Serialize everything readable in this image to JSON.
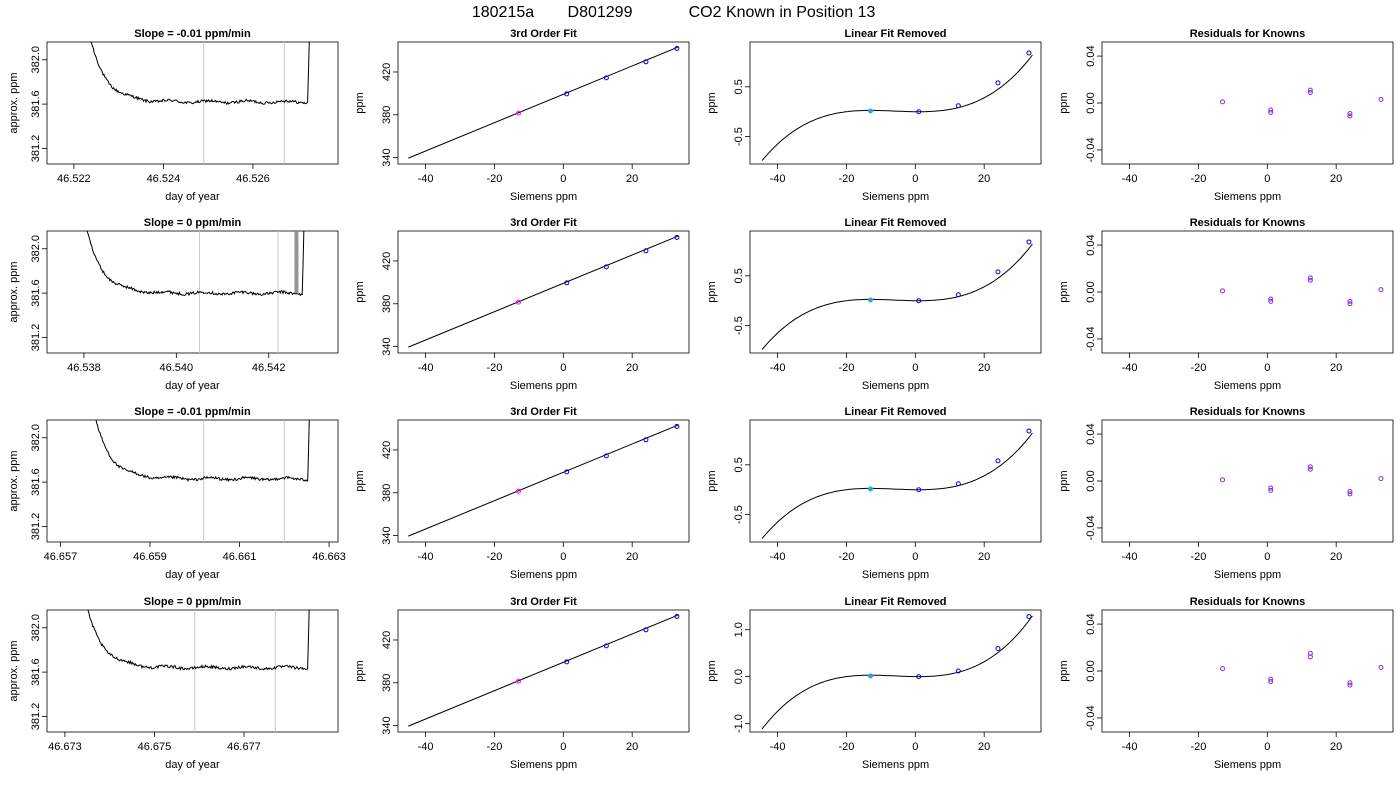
{
  "figure": {
    "title_parts": [
      "180215a",
      "D801299",
      "CO2 Known in Position  13"
    ]
  },
  "colors": {
    "trace": "#000000",
    "flag_line": "#c8c8c8",
    "known_point": "#0000ff",
    "ref_point": "#ff00ff",
    "position_point": "#29a3e6",
    "residual_point": "#8a2be2"
  },
  "chart_data": [
    {
      "type": "line",
      "panel": "timeseries",
      "row": 0,
      "title": "Slope =  -0.01  ppm/min",
      "xlabel": "day of year",
      "ylabel": "approx. ppm",
      "xlim": [
        46.5214,
        46.5279
      ],
      "ylim": [
        381.06,
        382.16
      ],
      "xticks": [
        46.522,
        46.524,
        46.526
      ],
      "xtick_labels": [
        "46.522",
        "46.524",
        "46.526"
      ],
      "yticks": [
        381.2,
        381.6,
        382.0
      ],
      "ytick_labels": [
        "381.2",
        "381.6",
        "382.0"
      ],
      "flag_x": [
        46.5249,
        46.5267
      ],
      "start_x": 46.5222,
      "end_x": 46.5273,
      "plateau": 381.62,
      "spike_x": 46.52695
    },
    {
      "type": "scatter",
      "panel": "fit",
      "row": 0,
      "title": "3rd Order Fit",
      "xlabel": "Siemens ppm",
      "ylabel": "ppm",
      "xlim": [
        -48,
        36.5
      ],
      "ylim": [
        334,
        448
      ],
      "xticks": [
        -40,
        -20,
        0,
        20
      ],
      "xtick_labels": [
        "-40",
        "-20",
        "0",
        "20"
      ],
      "yticks": [
        340,
        380,
        420
      ],
      "ytick_labels": [
        "340",
        "380",
        "420"
      ],
      "curve": {
        "x": [
          -45,
          33.5
        ],
        "y": [
          339.5,
          443.5
        ]
      },
      "points": [
        {
          "x": -13,
          "y": 381.5
        },
        {
          "x": 1,
          "y": 399.5
        },
        {
          "x": 12.5,
          "y": 414.5
        },
        {
          "x": 24,
          "y": 429.5
        },
        {
          "x": 33,
          "y": 442
        }
      ]
    },
    {
      "type": "scatter",
      "panel": "linear_removed",
      "row": 0,
      "title": "Linear Fit Removed",
      "xlabel": "Siemens ppm",
      "ylabel": "ppm",
      "xlim": [
        -48,
        36.5
      ],
      "ylim": [
        -1.05,
        1.4
      ],
      "xticks": [
        -40,
        -20,
        0,
        20
      ],
      "xtick_labels": [
        "-40",
        "-20",
        "0",
        "20"
      ],
      "yticks": [
        -0.5,
        0.5
      ],
      "ytick_labels": [
        "-0.5",
        "0.5"
      ],
      "curve": {
        "x": [
          -44.5,
          34
        ],
        "y0": 0,
        "xmin": -13,
        "xmax": 1,
        "a": 5.8e-05
      },
      "points": [
        {
          "x": -13,
          "y": 0.015
        },
        {
          "x": 1,
          "y": 0
        },
        {
          "x": 12.5,
          "y": 0.12
        },
        {
          "x": 24,
          "y": 0.58
        },
        {
          "x": 33,
          "y": 1.18
        }
      ]
    },
    {
      "type": "scatter",
      "panel": "residuals",
      "row": 0,
      "title": "Residuals for Knowns",
      "xlabel": "Siemens ppm",
      "ylabel": "ppm",
      "xlim": [
        -48,
        36.5
      ],
      "ylim": [
        -0.052,
        0.052
      ],
      "xticks": [
        -40,
        -20,
        0,
        20
      ],
      "xtick_labels": [
        "-40",
        "-20",
        "0",
        "20"
      ],
      "yticks": [
        -0.04,
        0.0,
        0.04
      ],
      "ytick_labels": [
        "-0.04",
        "0.00",
        "0.04"
      ],
      "points": [
        {
          "x": -13,
          "y": 0.001
        },
        {
          "x": 1,
          "y": -0.006
        },
        {
          "x": 1,
          "y": -0.008
        },
        {
          "x": 12.5,
          "y": 0.011
        },
        {
          "x": 12.5,
          "y": 0.009
        },
        {
          "x": 24,
          "y": -0.009
        },
        {
          "x": 24,
          "y": -0.011
        },
        {
          "x": 33,
          "y": 0.003
        }
      ]
    },
    {
      "type": "line",
      "panel": "timeseries",
      "row": 1,
      "title": "Slope =  0  ppm/min",
      "xlabel": "day of year",
      "ylabel": "approx. ppm",
      "xlim": [
        46.5372,
        46.5435
      ],
      "ylim": [
        381.06,
        382.16
      ],
      "xticks": [
        46.538,
        46.54,
        46.542
      ],
      "xtick_labels": [
        "46.538",
        "46.540",
        "46.542"
      ],
      "yticks": [
        381.2,
        381.6,
        382.0
      ],
      "ytick_labels": [
        "381.2",
        "381.6",
        "382.0"
      ],
      "flag_x": [
        46.5405,
        46.5422
      ],
      "start_x": 46.5379,
      "end_x": 46.5428,
      "plateau": 381.6,
      "spike_x": 46.5426
    },
    {
      "type": "scatter",
      "panel": "fit",
      "row": 1,
      "title": "3rd Order Fit",
      "xlabel": "Siemens ppm",
      "ylabel": "ppm",
      "xlim": [
        -48,
        36.5
      ],
      "ylim": [
        334,
        448
      ],
      "xticks": [
        -40,
        -20,
        0,
        20
      ],
      "xtick_labels": [
        "-40",
        "-20",
        "0",
        "20"
      ],
      "yticks": [
        340,
        380,
        420
      ],
      "ytick_labels": [
        "340",
        "380",
        "420"
      ],
      "curve": {
        "x": [
          -45,
          33.5
        ],
        "y": [
          339.5,
          443.5
        ]
      },
      "points": [
        {
          "x": -13,
          "y": 381.5
        },
        {
          "x": 1,
          "y": 399.5
        },
        {
          "x": 12.5,
          "y": 414.5
        },
        {
          "x": 24,
          "y": 429.5
        },
        {
          "x": 33,
          "y": 442
        }
      ]
    },
    {
      "type": "scatter",
      "panel": "linear_removed",
      "row": 1,
      "title": "Linear Fit Removed",
      "xlabel": "Siemens ppm",
      "ylabel": "ppm",
      "xlim": [
        -48,
        36.5
      ],
      "ylim": [
        -1.05,
        1.4
      ],
      "xticks": [
        -40,
        -20,
        0,
        20
      ],
      "xtick_labels": [
        "-40",
        "-20",
        "0",
        "20"
      ],
      "yticks": [
        -0.5,
        0.5
      ],
      "ytick_labels": [
        "-0.5",
        "0.5"
      ],
      "curve": {
        "x": [
          -44.5,
          34
        ],
        "y0": 0,
        "xmin": -13,
        "xmax": 1,
        "a": 5.8e-05
      },
      "points": [
        {
          "x": -13,
          "y": 0.015
        },
        {
          "x": 1,
          "y": 0
        },
        {
          "x": 12.5,
          "y": 0.12
        },
        {
          "x": 24,
          "y": 0.58
        },
        {
          "x": 33,
          "y": 1.18
        }
      ]
    },
    {
      "type": "scatter",
      "panel": "residuals",
      "row": 1,
      "title": "Residuals for Knowns",
      "xlabel": "Siemens ppm",
      "ylabel": "ppm",
      "xlim": [
        -48,
        36.5
      ],
      "ylim": [
        -0.052,
        0.052
      ],
      "xticks": [
        -40,
        -20,
        0,
        20
      ],
      "xtick_labels": [
        "-40",
        "-20",
        "0",
        "20"
      ],
      "yticks": [
        -0.04,
        0.0,
        0.04
      ],
      "ytick_labels": [
        "-0.04",
        "0.00",
        "0.04"
      ],
      "points": [
        {
          "x": -13,
          "y": 0.001
        },
        {
          "x": 1,
          "y": -0.006
        },
        {
          "x": 1,
          "y": -0.008
        },
        {
          "x": 12.5,
          "y": 0.012
        },
        {
          "x": 12.5,
          "y": 0.01
        },
        {
          "x": 24,
          "y": -0.008
        },
        {
          "x": 24,
          "y": -0.01
        },
        {
          "x": 33,
          "y": 0.002
        }
      ]
    },
    {
      "type": "line",
      "panel": "timeseries",
      "row": 2,
      "title": "Slope =  -0.01  ppm/min",
      "xlabel": "day of year",
      "ylabel": "approx. ppm",
      "xlim": [
        46.6567,
        46.6632
      ],
      "ylim": [
        381.06,
        382.16
      ],
      "xticks": [
        46.657,
        46.659,
        46.661,
        46.663
      ],
      "xtick_labels": [
        "46.657",
        "46.659",
        "46.661",
        "46.663"
      ],
      "yticks": [
        381.2,
        381.6,
        382.0
      ],
      "ytick_labels": [
        "381.2",
        "381.6",
        "382.0"
      ],
      "flag_x": [
        46.6602,
        46.662
      ],
      "start_x": 46.6576,
      "end_x": 46.6626,
      "plateau": 381.63,
      "spike_x": 46.66245
    },
    {
      "type": "scatter",
      "panel": "fit",
      "row": 2,
      "title": "3rd Order Fit",
      "xlabel": "Siemens ppm",
      "ylabel": "ppm",
      "xlim": [
        -48,
        36.5
      ],
      "ylim": [
        334,
        448
      ],
      "xticks": [
        -40,
        -20,
        0,
        20
      ],
      "xtick_labels": [
        "-40",
        "-20",
        "0",
        "20"
      ],
      "yticks": [
        340,
        380,
        420
      ],
      "ytick_labels": [
        "340",
        "380",
        "420"
      ],
      "curve": {
        "x": [
          -45,
          33.5
        ],
        "y": [
          339.5,
          443.5
        ]
      },
      "points": [
        {
          "x": -13,
          "y": 381.5
        },
        {
          "x": 1,
          "y": 399.5
        },
        {
          "x": 12.5,
          "y": 414.5
        },
        {
          "x": 24,
          "y": 429.5
        },
        {
          "x": 33,
          "y": 442
        }
      ]
    },
    {
      "type": "scatter",
      "panel": "linear_removed",
      "row": 2,
      "title": "Linear Fit Removed",
      "xlabel": "Siemens ppm",
      "ylabel": "ppm",
      "xlim": [
        -48,
        36.5
      ],
      "ylim": [
        -1.05,
        1.4
      ],
      "xticks": [
        -40,
        -20,
        0,
        20
      ],
      "xtick_labels": [
        "-40",
        "-20",
        "0",
        "20"
      ],
      "yticks": [
        -0.5,
        0.5
      ],
      "ytick_labels": [
        "-0.5",
        "0.5"
      ],
      "curve": {
        "x": [
          -44.5,
          34
        ],
        "y0": 0,
        "xmin": -13,
        "xmax": 1,
        "a": 5.8e-05
      },
      "points": [
        {
          "x": -13,
          "y": 0.015
        },
        {
          "x": 1,
          "y": 0
        },
        {
          "x": 12.5,
          "y": 0.12
        },
        {
          "x": 24,
          "y": 0.58
        },
        {
          "x": 33,
          "y": 1.18
        }
      ]
    },
    {
      "type": "scatter",
      "panel": "residuals",
      "row": 2,
      "title": "Residuals for Knowns",
      "xlabel": "Siemens ppm",
      "ylabel": "ppm",
      "xlim": [
        -48,
        36.5
      ],
      "ylim": [
        -0.052,
        0.052
      ],
      "xticks": [
        -40,
        -20,
        0,
        20
      ],
      "xtick_labels": [
        "-40",
        "-20",
        "0",
        "20"
      ],
      "yticks": [
        -0.04,
        0.0,
        0.04
      ],
      "ytick_labels": [
        "-0.04",
        "0.00",
        "0.04"
      ],
      "points": [
        {
          "x": -13,
          "y": 0.001
        },
        {
          "x": 1,
          "y": -0.006
        },
        {
          "x": 1,
          "y": -0.008
        },
        {
          "x": 12.5,
          "y": 0.012
        },
        {
          "x": 12.5,
          "y": 0.01
        },
        {
          "x": 24,
          "y": -0.009
        },
        {
          "x": 24,
          "y": -0.011
        },
        {
          "x": 33,
          "y": 0.002
        }
      ]
    },
    {
      "type": "line",
      "panel": "timeseries",
      "row": 3,
      "title": "Slope =  0  ppm/min",
      "xlabel": "day of year",
      "ylabel": "approx. ppm",
      "xlim": [
        46.6726,
        46.6791
      ],
      "ylim": [
        381.06,
        382.16
      ],
      "xticks": [
        46.673,
        46.675,
        46.677
      ],
      "xtick_labels": [
        "46.673",
        "46.675",
        "46.677"
      ],
      "yticks": [
        381.2,
        381.6,
        382.0
      ],
      "ytick_labels": [
        "381.2",
        "381.6",
        "382.0"
      ],
      "flag_x": [
        46.6759,
        46.6777
      ],
      "start_x": 46.6733,
      "end_x": 46.6785,
      "plateau": 381.64,
      "spike_x": 46.67845
    },
    {
      "type": "scatter",
      "panel": "fit",
      "row": 3,
      "title": "3rd Order Fit",
      "xlabel": "Siemens ppm",
      "ylabel": "ppm",
      "xlim": [
        -48,
        36.5
      ],
      "ylim": [
        334,
        448
      ],
      "xticks": [
        -40,
        -20,
        0,
        20
      ],
      "xtick_labels": [
        "-40",
        "-20",
        "0",
        "20"
      ],
      "yticks": [
        340,
        380,
        420
      ],
      "ytick_labels": [
        "340",
        "380",
        "420"
      ],
      "curve": {
        "x": [
          -45,
          33.5
        ],
        "y": [
          339.5,
          443.5
        ]
      },
      "points": [
        {
          "x": -13,
          "y": 381.5
        },
        {
          "x": 1,
          "y": 399.5
        },
        {
          "x": 12.5,
          "y": 414.5
        },
        {
          "x": 24,
          "y": 429.5
        },
        {
          "x": 33,
          "y": 442
        }
      ]
    },
    {
      "type": "scatter",
      "panel": "linear_removed",
      "row": 3,
      "title": "Linear Fit Removed",
      "xlabel": "Siemens ppm",
      "ylabel": "ppm",
      "xlim": [
        -48,
        36.5
      ],
      "ylim": [
        -1.18,
        1.42
      ],
      "xticks": [
        -40,
        -20,
        0,
        20
      ],
      "xtick_labels": [
        "-40",
        "-20",
        "0",
        "20"
      ],
      "yticks": [
        -1.0,
        0.0,
        1.0
      ],
      "ytick_labels": [
        "-1.0",
        "0.0",
        "1.0"
      ],
      "curve": {
        "x": [
          -44.5,
          34
        ],
        "y0": 0,
        "xmin": -13,
        "xmax": 1,
        "a": 6.6e-05
      },
      "points": [
        {
          "x": -13,
          "y": 0.015
        },
        {
          "x": 1,
          "y": 0
        },
        {
          "x": 12.5,
          "y": 0.12
        },
        {
          "x": 24,
          "y": 0.6
        },
        {
          "x": 33,
          "y": 1.28
        }
      ]
    },
    {
      "type": "scatter",
      "panel": "residuals",
      "row": 3,
      "title": "Residuals for Knowns",
      "xlabel": "Siemens ppm",
      "ylabel": "ppm",
      "xlim": [
        -48,
        36.5
      ],
      "ylim": [
        -0.052,
        0.052
      ],
      "xticks": [
        -40,
        -20,
        0,
        20
      ],
      "xtick_labels": [
        "-40",
        "-20",
        "0",
        "20"
      ],
      "yticks": [
        -0.04,
        0.0,
        0.04
      ],
      "ytick_labels": [
        "-0.04",
        "0.00",
        "0.04"
      ],
      "points": [
        {
          "x": -13,
          "y": 0.002
        },
        {
          "x": 1,
          "y": -0.007
        },
        {
          "x": 1,
          "y": -0.009
        },
        {
          "x": 12.5,
          "y": 0.015
        },
        {
          "x": 12.5,
          "y": 0.012
        },
        {
          "x": 24,
          "y": -0.01
        },
        {
          "x": 24,
          "y": -0.012
        },
        {
          "x": 33,
          "y": 0.003
        }
      ]
    }
  ]
}
